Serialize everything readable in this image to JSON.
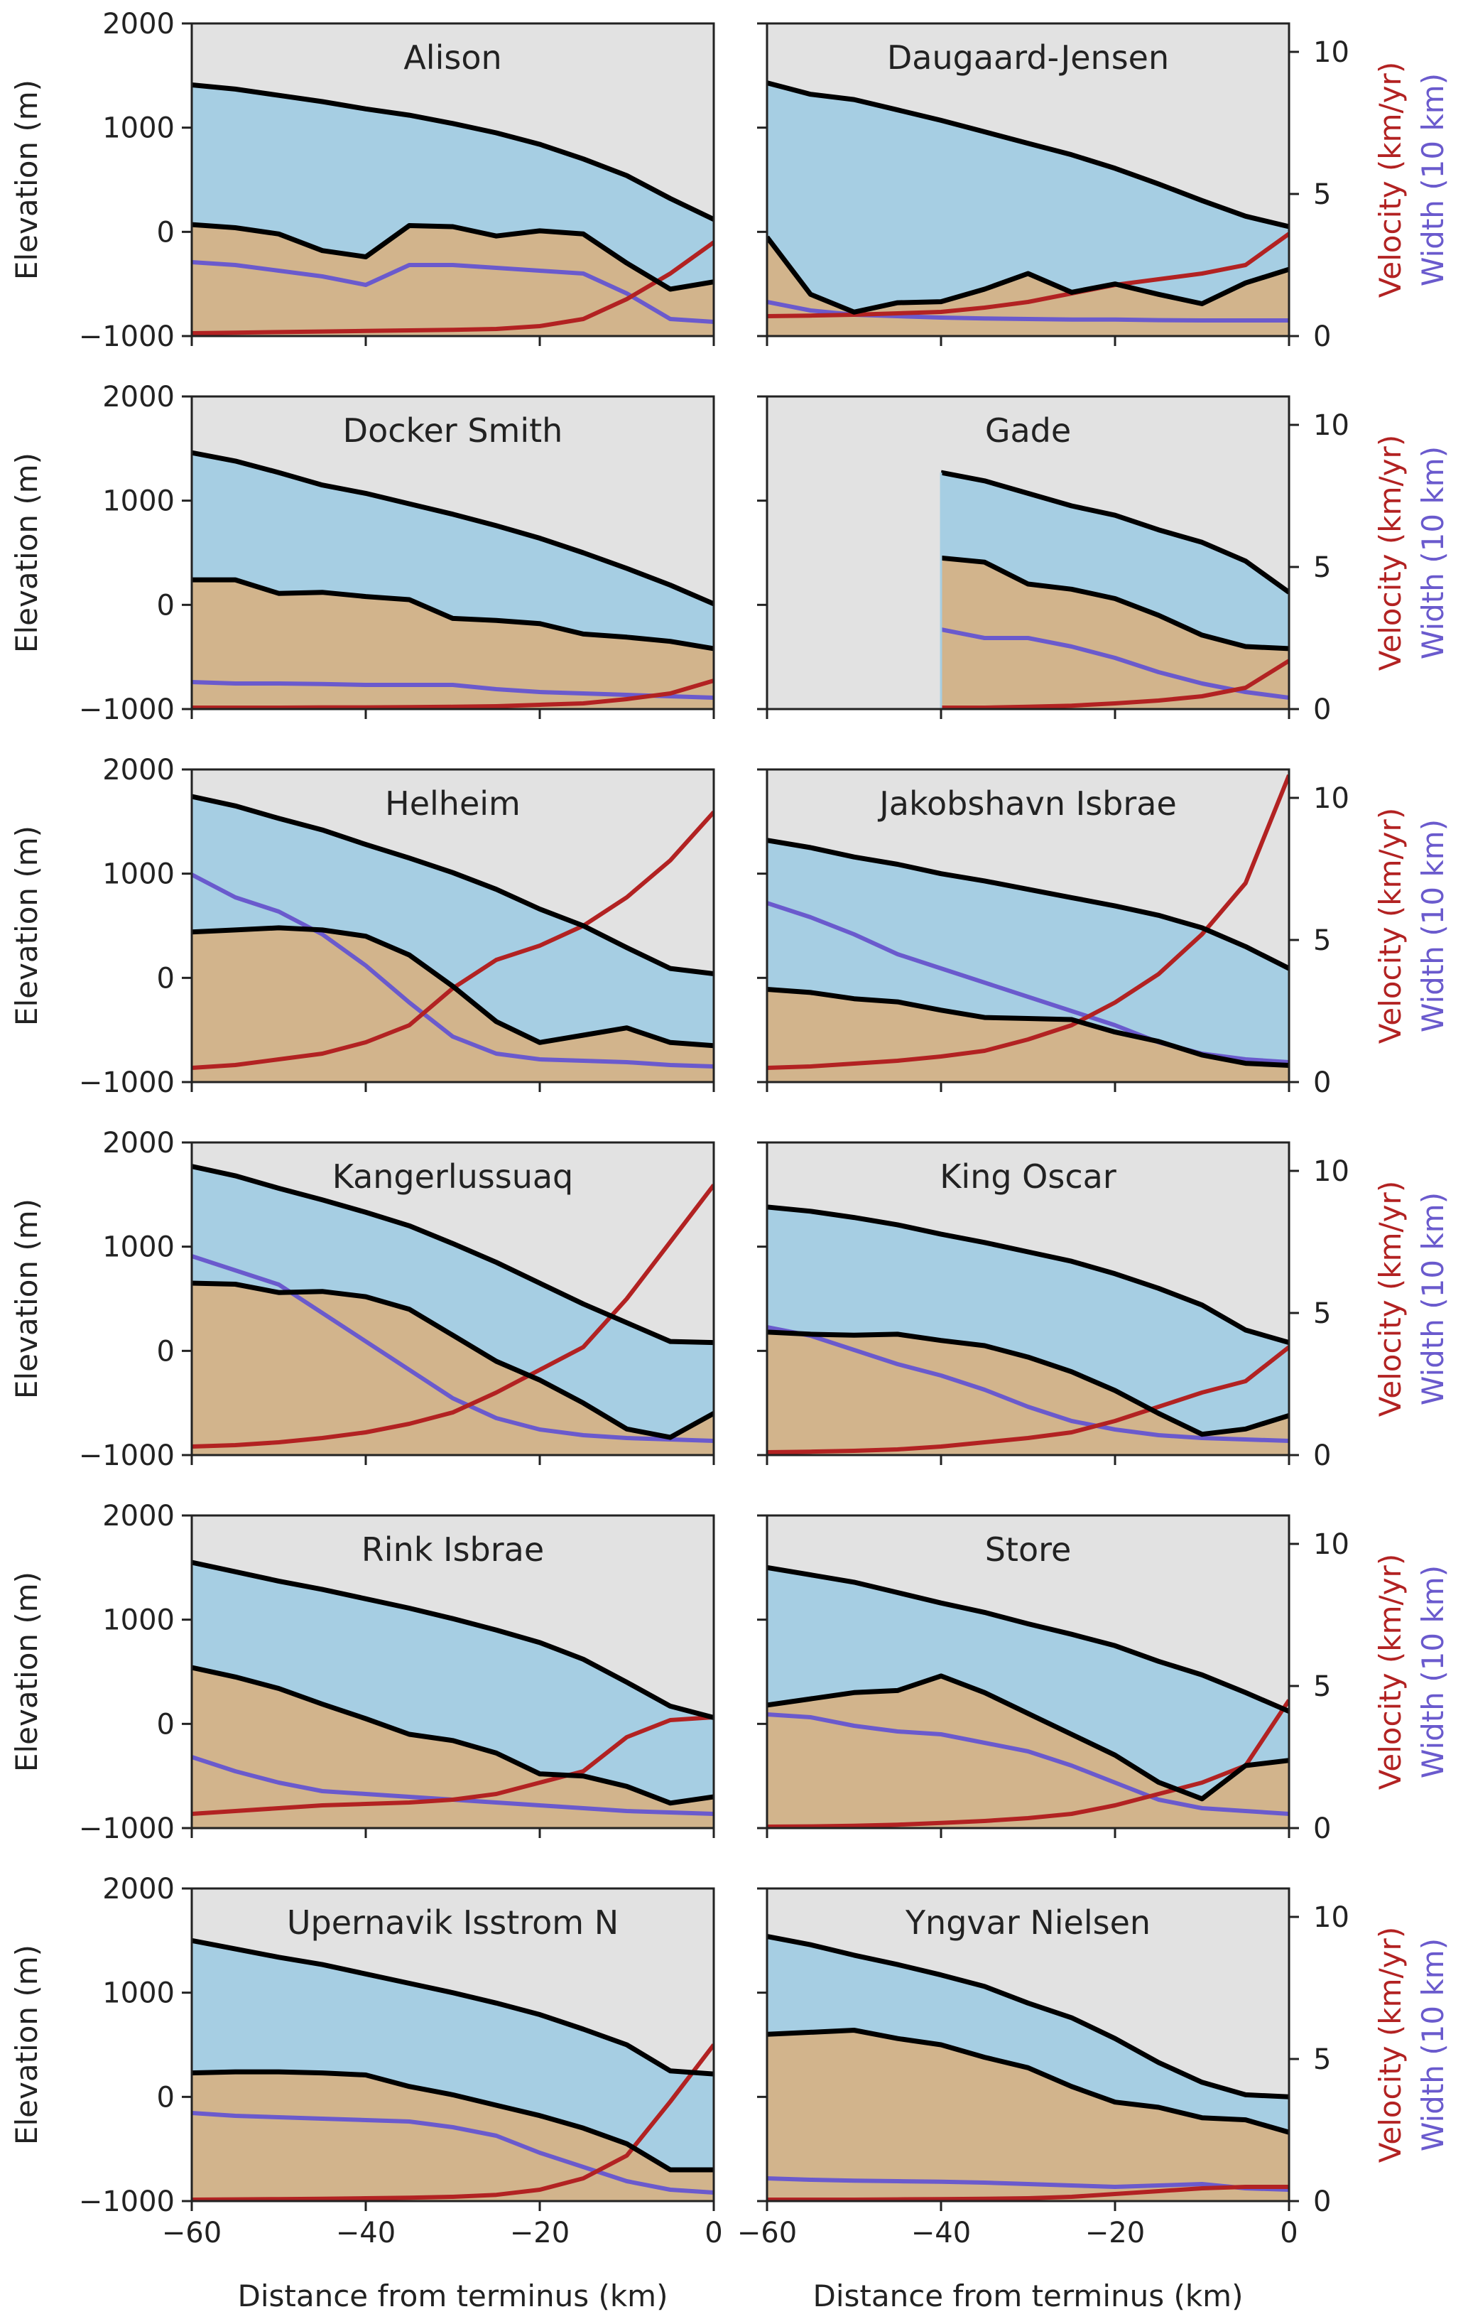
{
  "figure": {
    "shared_xlabel": "Distance from terminus (km)",
    "shared_ylabel": "Elevation (m)",
    "right_ylabel_velocity": "Velocity (km/yr)",
    "right_ylabel_width": "Width (10 km)"
  },
  "colors": {
    "background": "#e2e2e2",
    "ice": "#a6cee3",
    "bed": "#d2b48c",
    "outline": "#000000",
    "velocity": "#b22222",
    "width": "#6a5acd"
  },
  "chart_data": [
    {
      "type": "area",
      "title": "Alison",
      "xlim": [
        -60,
        0
      ],
      "ylim": [
        -1000,
        2000
      ],
      "y2lim": [
        0,
        11
      ],
      "x": [
        -60,
        -55,
        -50,
        -45,
        -40,
        -35,
        -30,
        -25,
        -20,
        -15,
        -10,
        -5,
        0
      ],
      "surface": [
        1410,
        1370,
        1310,
        1250,
        1180,
        1120,
        1040,
        950,
        840,
        700,
        540,
        320,
        120
      ],
      "bed": [
        70,
        40,
        -20,
        -180,
        -240,
        60,
        50,
        -40,
        10,
        -20,
        -300,
        -550,
        -480
      ],
      "velocity": [
        0.1,
        0.12,
        0.14,
        0.16,
        0.18,
        0.2,
        0.22,
        0.25,
        0.35,
        0.6,
        1.3,
        2.2,
        3.3
      ],
      "width": [
        2.6,
        2.5,
        2.3,
        2.1,
        1.8,
        2.5,
        2.5,
        2.4,
        2.3,
        2.2,
        1.5,
        0.6,
        0.5
      ]
    },
    {
      "type": "area",
      "title": "Daugaard-Jensen",
      "xlim": [
        -60,
        0
      ],
      "ylim": [
        -1000,
        2000
      ],
      "y2lim": [
        0,
        11
      ],
      "x": [
        -60,
        -55,
        -50,
        -45,
        -40,
        -35,
        -30,
        -25,
        -20,
        -15,
        -10,
        -5,
        0
      ],
      "surface": [
        1430,
        1320,
        1270,
        1170,
        1070,
        960,
        850,
        740,
        610,
        460,
        300,
        150,
        50
      ],
      "bed": [
        -50,
        -600,
        -770,
        -680,
        -670,
        -550,
        -400,
        -580,
        -500,
        -600,
        -690,
        -490,
        -360
      ],
      "velocity": [
        0.7,
        0.72,
        0.75,
        0.8,
        0.85,
        1.0,
        1.2,
        1.5,
        1.8,
        2.0,
        2.2,
        2.5,
        3.6
      ],
      "width": [
        1.2,
        0.9,
        0.75,
        0.7,
        0.65,
        0.62,
        0.6,
        0.58,
        0.58,
        0.56,
        0.55,
        0.55,
        0.55
      ]
    },
    {
      "type": "area",
      "title": "Docker Smith",
      "xlim": [
        -60,
        0
      ],
      "ylim": [
        -1000,
        2000
      ],
      "y2lim": [
        0,
        11
      ],
      "x": [
        -60,
        -55,
        -50,
        -45,
        -40,
        -35,
        -30,
        -25,
        -20,
        -15,
        -10,
        -5,
        0
      ],
      "surface": [
        1460,
        1380,
        1270,
        1150,
        1070,
        970,
        870,
        760,
        640,
        500,
        350,
        190,
        10
      ],
      "bed": [
        240,
        240,
        110,
        120,
        80,
        50,
        -130,
        -150,
        -180,
        -280,
        -310,
        -350,
        -420
      ],
      "velocity": [
        0.05,
        0.05,
        0.05,
        0.06,
        0.06,
        0.07,
        0.08,
        0.1,
        0.15,
        0.2,
        0.35,
        0.55,
        1.0
      ],
      "width": [
        0.95,
        0.9,
        0.9,
        0.88,
        0.85,
        0.85,
        0.85,
        0.7,
        0.6,
        0.55,
        0.5,
        0.45,
        0.4
      ]
    },
    {
      "type": "area",
      "title": "Gade",
      "xlim": [
        -60,
        0
      ],
      "ylim": [
        -1000,
        2000
      ],
      "y2lim": [
        0,
        11
      ],
      "x": [
        -40,
        -35,
        -30,
        -25,
        -20,
        -15,
        -10,
        -5,
        0
      ],
      "surface": [
        1270,
        1190,
        1070,
        950,
        860,
        720,
        600,
        420,
        120
      ],
      "bed": [
        450,
        410,
        200,
        150,
        60,
        -100,
        -290,
        -400,
        -420
      ],
      "velocity": [
        0.05,
        0.05,
        0.08,
        0.12,
        0.2,
        0.3,
        0.45,
        0.75,
        1.7
      ],
      "width": [
        2.8,
        2.5,
        2.5,
        2.2,
        1.8,
        1.3,
        0.9,
        0.6,
        0.4
      ]
    },
    {
      "type": "area",
      "title": "Helheim",
      "xlim": [
        -60,
        0
      ],
      "ylim": [
        -1000,
        2000
      ],
      "y2lim": [
        0,
        11
      ],
      "x": [
        -60,
        -55,
        -50,
        -45,
        -40,
        -35,
        -30,
        -25,
        -20,
        -15,
        -10,
        -5,
        0
      ],
      "surface": [
        1740,
        1650,
        1530,
        1420,
        1280,
        1150,
        1010,
        850,
        660,
        500,
        290,
        90,
        40
      ],
      "bed": [
        440,
        460,
        480,
        460,
        400,
        220,
        -80,
        -420,
        -620,
        -550,
        -480,
        -620,
        -650
      ],
      "velocity": [
        0.5,
        0.6,
        0.8,
        1.0,
        1.4,
        2.0,
        3.3,
        4.3,
        4.8,
        5.5,
        6.5,
        7.8,
        9.5
      ],
      "width": [
        7.3,
        6.5,
        6.0,
        5.2,
        4.1,
        2.8,
        1.6,
        1.0,
        0.8,
        0.75,
        0.7,
        0.6,
        0.55
      ]
    },
    {
      "type": "area",
      "title": "Jakobshavn Isbrae",
      "xlim": [
        -60,
        0
      ],
      "ylim": [
        -1000,
        2000
      ],
      "y2lim": [
        0,
        11
      ],
      "x": [
        -60,
        -55,
        -50,
        -45,
        -40,
        -35,
        -30,
        -25,
        -20,
        -15,
        -10,
        -5,
        0
      ],
      "surface": [
        1320,
        1250,
        1160,
        1090,
        1000,
        930,
        850,
        770,
        690,
        600,
        480,
        300,
        90
      ],
      "bed": [
        -110,
        -140,
        -200,
        -230,
        -310,
        -380,
        -390,
        -400,
        -520,
        -610,
        -740,
        -820,
        -840
      ],
      "velocity": [
        0.5,
        0.55,
        0.65,
        0.75,
        0.9,
        1.1,
        1.5,
        2.0,
        2.8,
        3.8,
        5.2,
        7.0,
        10.8
      ],
      "width": [
        6.3,
        5.8,
        5.2,
        4.5,
        4.0,
        3.5,
        3.0,
        2.5,
        2.0,
        1.4,
        1.0,
        0.8,
        0.7
      ]
    },
    {
      "type": "area",
      "title": "Kangerlussuaq",
      "xlim": [
        -60,
        0
      ],
      "ylim": [
        -1000,
        2000
      ],
      "y2lim": [
        0,
        11
      ],
      "x": [
        -60,
        -55,
        -50,
        -45,
        -40,
        -35,
        -30,
        -25,
        -20,
        -15,
        -10,
        -5,
        0
      ],
      "surface": [
        1770,
        1680,
        1560,
        1450,
        1330,
        1200,
        1030,
        850,
        650,
        450,
        270,
        90,
        80
      ],
      "bed": [
        650,
        640,
        560,
        570,
        520,
        400,
        150,
        -100,
        -280,
        -500,
        -750,
        -830,
        -600
      ],
      "velocity": [
        0.3,
        0.35,
        0.45,
        0.6,
        0.8,
        1.1,
        1.5,
        2.2,
        3.0,
        3.8,
        5.5,
        7.5,
        9.5
      ],
      "width": [
        7.0,
        6.5,
        6.0,
        5.0,
        4.0,
        3.0,
        2.0,
        1.3,
        0.9,
        0.7,
        0.6,
        0.55,
        0.5
      ]
    },
    {
      "type": "area",
      "title": "King Oscar",
      "xlim": [
        -60,
        0
      ],
      "ylim": [
        -1000,
        2000
      ],
      "y2lim": [
        0,
        11
      ],
      "x": [
        -60,
        -55,
        -50,
        -45,
        -40,
        -35,
        -30,
        -25,
        -20,
        -15,
        -10,
        -5,
        0
      ],
      "surface": [
        1380,
        1340,
        1280,
        1210,
        1120,
        1040,
        950,
        860,
        740,
        600,
        440,
        200,
        80
      ],
      "bed": [
        180,
        160,
        150,
        160,
        100,
        50,
        -60,
        -200,
        -380,
        -600,
        -800,
        -750,
        -620
      ],
      "velocity": [
        0.1,
        0.12,
        0.15,
        0.2,
        0.3,
        0.45,
        0.6,
        0.8,
        1.2,
        1.7,
        2.2,
        2.6,
        3.8
      ],
      "width": [
        4.5,
        4.2,
        3.7,
        3.2,
        2.8,
        2.3,
        1.7,
        1.2,
        0.9,
        0.7,
        0.6,
        0.55,
        0.5
      ]
    },
    {
      "type": "area",
      "title": "Rink Isbrae",
      "xlim": [
        -60,
        0
      ],
      "ylim": [
        -1000,
        2000
      ],
      "y2lim": [
        0,
        11
      ],
      "x": [
        -60,
        -55,
        -50,
        -45,
        -40,
        -35,
        -30,
        -25,
        -20,
        -15,
        -10,
        -5,
        0
      ],
      "surface": [
        1550,
        1460,
        1370,
        1290,
        1200,
        1110,
        1010,
        900,
        780,
        620,
        400,
        170,
        60
      ],
      "bed": [
        540,
        450,
        340,
        190,
        50,
        -100,
        -160,
        -280,
        -480,
        -500,
        -600,
        -760,
        -700
      ],
      "velocity": [
        0.5,
        0.6,
        0.7,
        0.8,
        0.85,
        0.9,
        1.0,
        1.2,
        1.6,
        2.0,
        3.2,
        3.8,
        3.9
      ],
      "width": [
        2.5,
        2.0,
        1.6,
        1.3,
        1.2,
        1.1,
        1.0,
        0.9,
        0.8,
        0.7,
        0.6,
        0.55,
        0.5
      ]
    },
    {
      "type": "area",
      "title": "Store",
      "xlim": [
        -60,
        0
      ],
      "ylim": [
        -1000,
        2000
      ],
      "y2lim": [
        0,
        11
      ],
      "x": [
        -60,
        -55,
        -50,
        -45,
        -40,
        -35,
        -30,
        -25,
        -20,
        -15,
        -10,
        -5,
        0
      ],
      "surface": [
        1500,
        1430,
        1360,
        1260,
        1160,
        1070,
        960,
        860,
        750,
        600,
        470,
        300,
        120
      ],
      "bed": [
        180,
        240,
        300,
        320,
        460,
        300,
        100,
        -100,
        -300,
        -560,
        -720,
        -400,
        -350
      ],
      "velocity": [
        0.05,
        0.06,
        0.08,
        0.12,
        0.18,
        0.25,
        0.35,
        0.5,
        0.8,
        1.2,
        1.6,
        2.2,
        4.5
      ],
      "width": [
        4.0,
        3.9,
        3.6,
        3.4,
        3.3,
        3.0,
        2.7,
        2.2,
        1.6,
        1.0,
        0.7,
        0.6,
        0.5
      ]
    },
    {
      "type": "area",
      "title": "Upernavik Isstrom N",
      "xlim": [
        -60,
        0
      ],
      "ylim": [
        -1000,
        2000
      ],
      "y2lim": [
        0,
        11
      ],
      "x": [
        -60,
        -55,
        -50,
        -45,
        -40,
        -35,
        -30,
        -25,
        -20,
        -15,
        -10,
        -5,
        0
      ],
      "surface": [
        1500,
        1420,
        1340,
        1270,
        1180,
        1090,
        1000,
        900,
        790,
        650,
        500,
        250,
        220
      ],
      "bed": [
        230,
        240,
        240,
        230,
        210,
        100,
        20,
        -80,
        -180,
        -300,
        -450,
        -700,
        -700
      ],
      "velocity": [
        0.05,
        0.06,
        0.07,
        0.08,
        0.1,
        0.12,
        0.15,
        0.22,
        0.4,
        0.8,
        1.6,
        3.5,
        5.5
      ],
      "width": [
        3.1,
        3.0,
        2.95,
        2.9,
        2.85,
        2.8,
        2.6,
        2.3,
        1.7,
        1.2,
        0.7,
        0.4,
        0.3
      ]
    },
    {
      "type": "area",
      "title": "Yngvar Nielsen",
      "xlim": [
        -60,
        0
      ],
      "ylim": [
        -1000,
        2000
      ],
      "y2lim": [
        0,
        11
      ],
      "x": [
        -60,
        -55,
        -50,
        -45,
        -40,
        -35,
        -30,
        -25,
        -20,
        -15,
        -10,
        -5,
        0
      ],
      "surface": [
        1540,
        1460,
        1360,
        1270,
        1170,
        1060,
        900,
        760,
        560,
        330,
        140,
        20,
        0
      ],
      "bed": [
        600,
        620,
        640,
        560,
        500,
        380,
        280,
        100,
        -50,
        -100,
        -200,
        -220,
        -340
      ],
      "velocity": [
        0.05,
        0.05,
        0.05,
        0.06,
        0.07,
        0.08,
        0.1,
        0.15,
        0.25,
        0.35,
        0.45,
        0.5,
        0.5
      ],
      "width": [
        0.8,
        0.75,
        0.72,
        0.7,
        0.68,
        0.65,
        0.6,
        0.55,
        0.5,
        0.55,
        0.6,
        0.45,
        0.4
      ]
    }
  ],
  "axes": {
    "xticks": [
      "−60",
      "−40",
      "−20",
      "0"
    ],
    "xtick_values": [
      -60,
      -40,
      -20,
      0
    ],
    "yticks": [
      "2000",
      "1000",
      "0",
      "−1000"
    ],
    "ytick_values": [
      2000,
      1000,
      0,
      -1000
    ],
    "y2ticks": [
      "10",
      "5",
      "0"
    ],
    "y2tick_values": [
      10,
      5,
      0
    ]
  }
}
